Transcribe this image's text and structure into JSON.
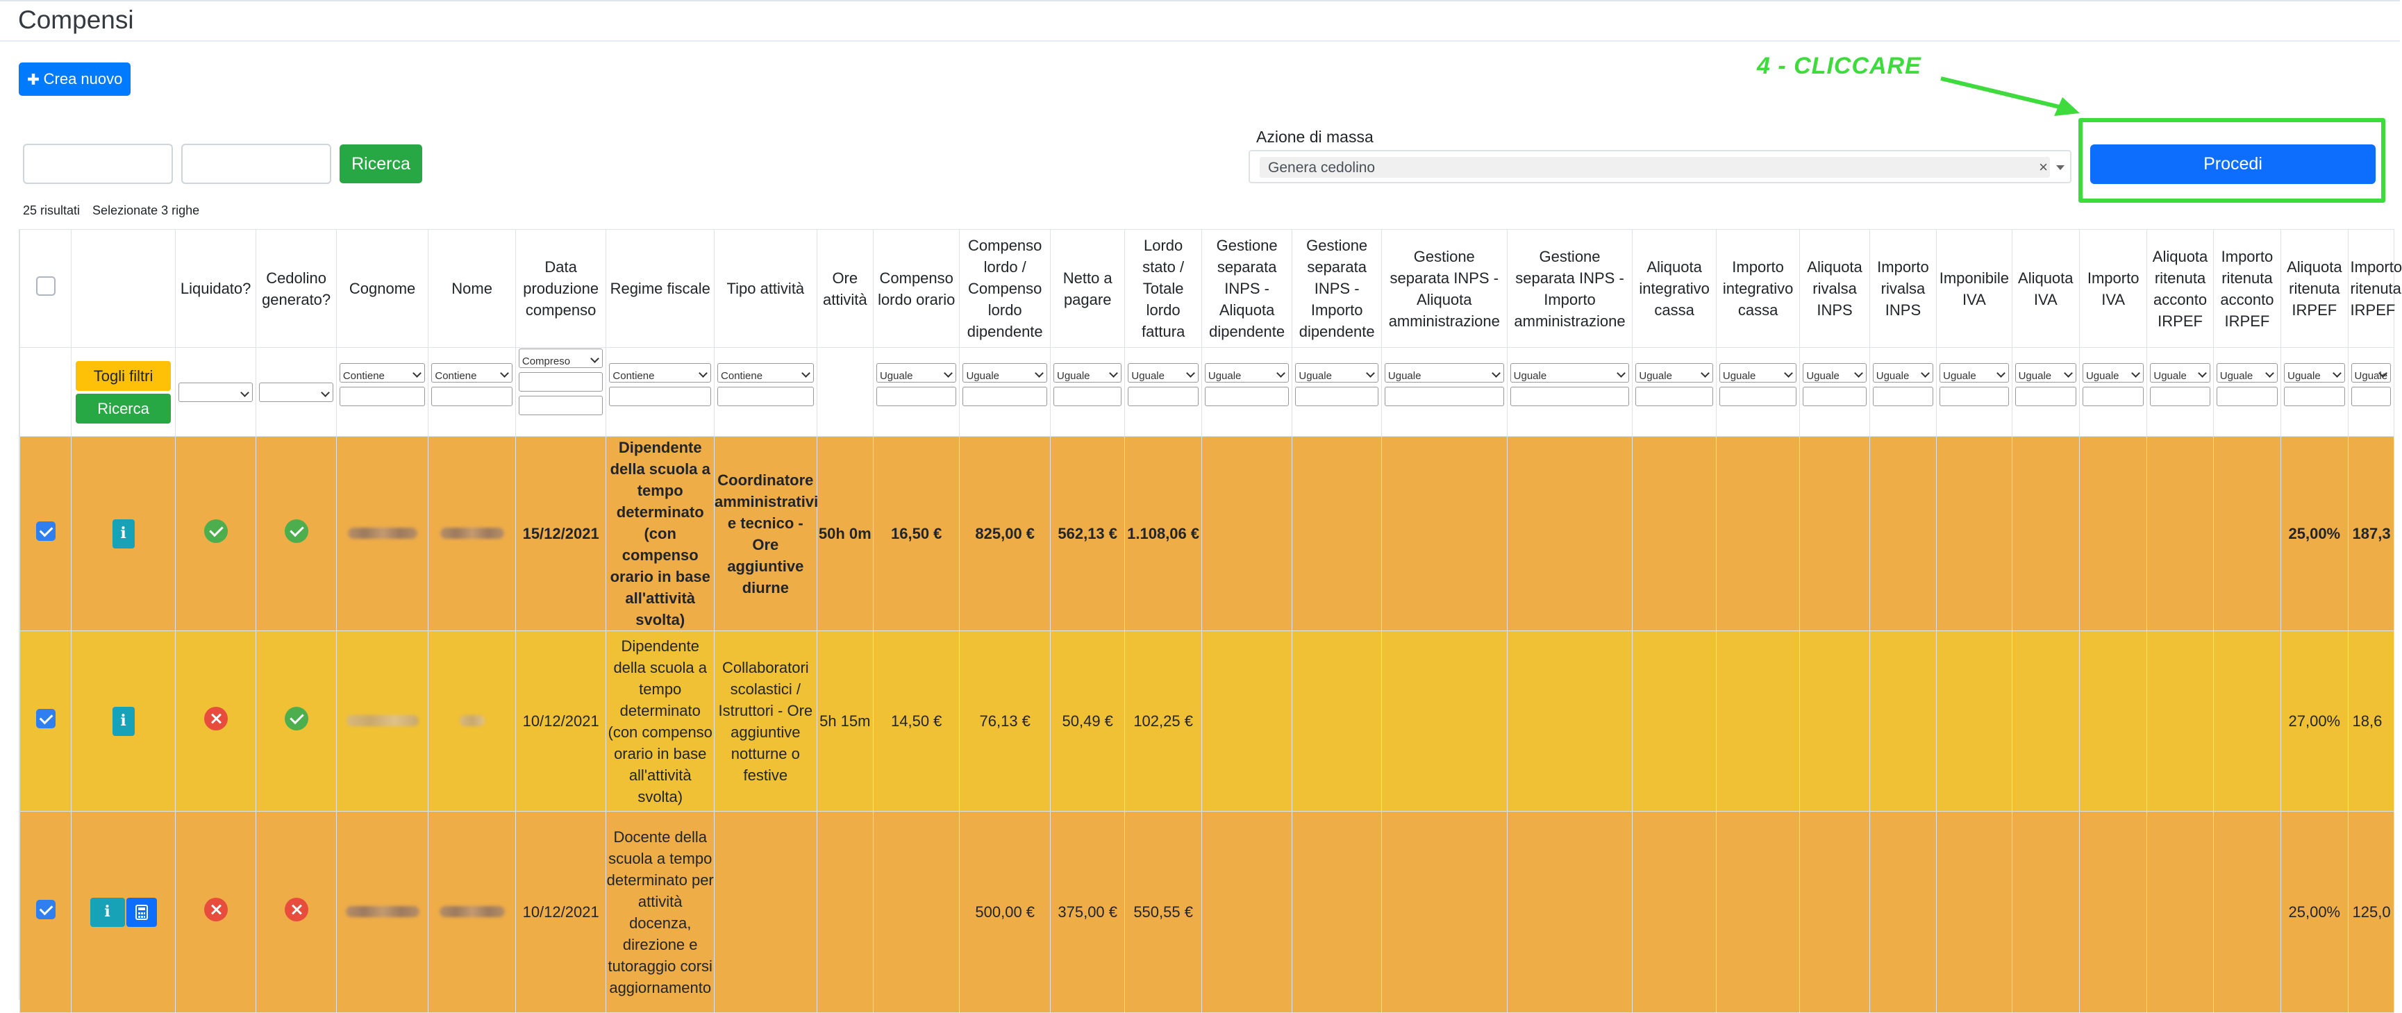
{
  "page": {
    "title": "Compensi",
    "new_button": "Crea nuovo",
    "search_button": "Ricerca"
  },
  "mass_action": {
    "label": "Azione di massa",
    "selected": "Genera cedolino",
    "clear_symbol": "×",
    "proceed_button": "Procedi"
  },
  "annotation": {
    "text": "4 - CLICCARE",
    "color": "#3ddb3b"
  },
  "results": {
    "count_text": "25 risultati",
    "selected_text": "Selezionate 3 righe"
  },
  "table": {
    "headers": [
      "",
      "",
      "Liquidato?",
      "Cedolino generato?",
      "Cognome",
      "Nome",
      "Data produzione compenso",
      "Regime fiscale",
      "Tipo attività",
      "Ore attività",
      "Compenso lordo orario",
      "Compenso lordo / Compenso lordo dipendente",
      "Netto a pagare",
      "Lordo stato / Totale lordo fattura",
      "Gestione separata INPS - Aliquota dipendente",
      "Gestione separata INPS - Importo dipendente",
      "Gestione separata INPS - Aliquota amministrazione",
      "Gestione separata INPS - Importo amministrazione",
      "Aliquota integrativo cassa",
      "Importo integrativo cassa",
      "Aliquota rivalsa INPS",
      "Importo rivalsa INPS",
      "Imponibile IVA",
      "Aliquota IVA",
      "Importo IVA",
      "Aliquota ritenuta acconto IRPEF",
      "Importo ritenuta acconto IRPEF",
      "Aliquota ritenuta IRPEF",
      "Importo ritenuta IRPEF"
    ],
    "filter_buttons": {
      "toggle": "Togli filtri",
      "search": "Ricerca"
    },
    "filters": [
      "",
      "",
      "",
      "",
      "Contiene",
      "Contiene",
      "Compreso",
      "Contiene",
      "Contiene",
      "",
      "Uguale",
      "Uguale",
      "Uguale",
      "Uguale",
      "Uguale",
      "Uguale",
      "Uguale",
      "Uguale",
      "Uguale",
      "Uguale",
      "Uguale",
      "Uguale",
      "Uguale",
      "Uguale",
      "Uguale",
      "Uguale",
      "Uguale",
      "Uguale",
      "Uguale"
    ],
    "rows": [
      {
        "selected": true,
        "liquidato": true,
        "cedolino": true,
        "data": "15/12/2021",
        "regime": "Dipendente della scuola a tempo determinato (con compenso orario in base all'attività svolta)",
        "tipo": "Coordinatore amministrativi e tecnico - Ore aggiuntive diurne",
        "ore": "50h 0m",
        "orario": "16,50 €",
        "lordo": "825,00 €",
        "netto": "562,13 €",
        "lordo_stato": "1.108,06 €",
        "aliq_irpef": "25,00%",
        "imp_irpef": "187,3"
      },
      {
        "selected": true,
        "liquidato": false,
        "cedolino": true,
        "data": "10/12/2021",
        "regime": "Dipendente della scuola a tempo determinato (con compenso orario in base all'attività svolta)",
        "tipo": "Collaboratori scolastici / Istruttori - Ore aggiuntive notturne o festive",
        "ore": "5h 15m",
        "orario": "14,50 €",
        "lordo": "76,13 €",
        "netto": "50,49 €",
        "lordo_stato": "102,25 €",
        "aliq_irpef": "27,00%",
        "imp_irpef": "18,6"
      },
      {
        "selected": true,
        "liquidato": false,
        "cedolino": false,
        "data": "10/12/2021",
        "regime": "Docente della scuola a tempo determinato per attività docenza, direzione e tutoraggio corsi aggiornamento",
        "tipo": "",
        "ore": "",
        "orario": "",
        "lordo": "500,00 €",
        "netto": "375,00 €",
        "lordo_stato": "550,55 €",
        "aliq_irpef": "25,00%",
        "imp_irpef": "125,0"
      }
    ]
  }
}
